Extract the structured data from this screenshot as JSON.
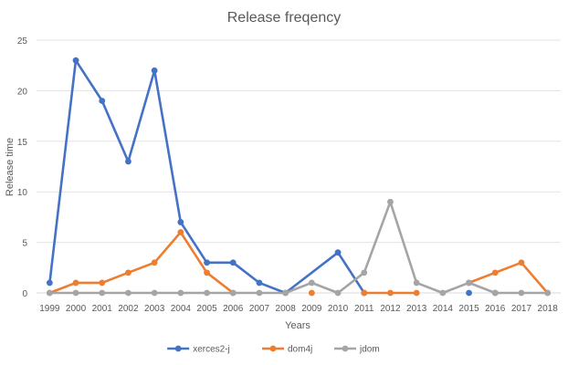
{
  "chart_data": {
    "type": "line",
    "title": "Release freqency",
    "xlabel": "Years",
    "ylabel": "Release time",
    "ylim": [
      0,
      25
    ],
    "yticks": [
      "0",
      "5",
      "10",
      "15",
      "20",
      "25"
    ],
    "grid": "horizontal",
    "legend_position": "bottom",
    "categories": [
      "1999",
      "2000",
      "2001",
      "2002",
      "2003",
      "2004",
      "2005",
      "2006",
      "2007",
      "2008",
      "2009",
      "2010",
      "2011",
      "2012",
      "2013",
      "2014",
      "2015",
      "2016",
      "2017",
      "2018"
    ],
    "series": [
      {
        "name": "xerces2-j",
        "color": "#4472c4",
        "values": [
          1,
          23,
          19,
          13,
          22,
          7,
          3,
          3,
          1,
          0,
          null,
          4,
          0,
          null,
          null,
          null,
          0,
          0,
          null,
          null
        ],
        "segments": [
          [
            0,
            9
          ],
          [
            9,
            12
          ],
          [
            14,
            16
          ]
        ]
      },
      {
        "name": "dom4j",
        "color": "#ed7d31",
        "values": [
          0,
          1,
          1,
          2,
          3,
          6,
          2,
          0,
          null,
          null,
          0,
          null,
          0,
          0,
          0,
          null,
          1,
          2,
          3,
          0
        ],
        "segments": [
          [
            0,
            7
          ],
          [
            10,
            10
          ],
          [
            12,
            14
          ],
          [
            15,
            19
          ]
        ]
      },
      {
        "name": "jdom",
        "color": "#a5a5a5",
        "values": [
          0,
          0,
          0,
          0,
          0,
          0,
          0,
          0,
          0,
          0,
          1,
          0,
          2,
          9,
          1,
          0,
          1,
          0,
          0,
          0
        ],
        "segments": [
          [
            0,
            19
          ]
        ]
      }
    ]
  }
}
